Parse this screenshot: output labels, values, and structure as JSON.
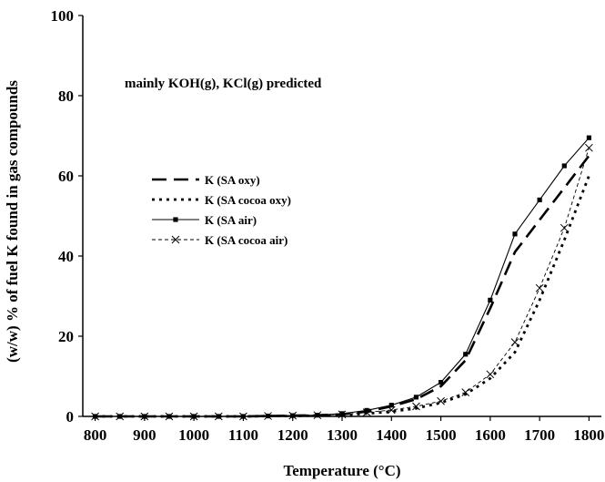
{
  "chart_data": {
    "type": "line",
    "title": "",
    "xlabel": "Temperature (°C)",
    "ylabel": "(w/w) % of fuel K found in gas compounds",
    "annotation": "mainly KOH(g), KCl(g) predicted",
    "xlim": [
      775,
      1825
    ],
    "ylim": [
      0,
      100
    ],
    "xticks": [
      800,
      900,
      1000,
      1100,
      1200,
      1300,
      1400,
      1500,
      1600,
      1700,
      1800
    ],
    "yticks": [
      0,
      20,
      40,
      60,
      80,
      100
    ],
    "grid": false,
    "legend_position": "center-left",
    "series": [
      {
        "name": "K (SA oxy)",
        "style": "long-dash",
        "x": [
          800,
          850,
          900,
          950,
          1000,
          1050,
          1100,
          1150,
          1200,
          1250,
          1300,
          1350,
          1400,
          1450,
          1500,
          1550,
          1600,
          1650,
          1700,
          1750,
          1800
        ],
        "y": [
          0,
          0,
          0,
          0,
          0,
          0,
          0,
          0.1,
          0.2,
          0.3,
          0.5,
          1.2,
          2.5,
          4.3,
          7.5,
          14,
          27,
          41,
          49,
          57,
          65
        ]
      },
      {
        "name": "K (SA cocoa oxy)",
        "style": "dotted",
        "x": [
          800,
          850,
          900,
          950,
          1000,
          1050,
          1100,
          1150,
          1200,
          1250,
          1300,
          1350,
          1400,
          1450,
          1500,
          1550,
          1600,
          1650,
          1700,
          1750,
          1800
        ],
        "y": [
          0,
          0,
          0,
          0,
          0,
          0,
          0,
          0.1,
          0.1,
          0.2,
          0.3,
          0.7,
          1.2,
          2.0,
          3.4,
          5.5,
          9.5,
          16,
          29,
          44,
          60
        ]
      },
      {
        "name": "K (SA air)",
        "style": "solid-square",
        "x": [
          800,
          850,
          900,
          950,
          1000,
          1050,
          1100,
          1150,
          1200,
          1250,
          1300,
          1350,
          1400,
          1450,
          1500,
          1550,
          1600,
          1650,
          1700,
          1750,
          1800
        ],
        "y": [
          0,
          0,
          0,
          0,
          0,
          0,
          0,
          0.1,
          0.2,
          0.3,
          0.7,
          1.5,
          2.8,
          4.8,
          8.5,
          15.5,
          29,
          45.5,
          54,
          62.5,
          69.5
        ]
      },
      {
        "name": "K (SA cocoa air)",
        "style": "dashed-x",
        "x": [
          800,
          850,
          900,
          950,
          1000,
          1050,
          1100,
          1150,
          1200,
          1250,
          1300,
          1350,
          1400,
          1450,
          1500,
          1550,
          1600,
          1650,
          1700,
          1750,
          1800
        ],
        "y": [
          0,
          0,
          0,
          0,
          0,
          0,
          0,
          0.1,
          0.2,
          0.3,
          0.5,
          1.0,
          1.6,
          2.5,
          3.8,
          6.0,
          10.5,
          18.5,
          32,
          47,
          67
        ]
      }
    ]
  }
}
